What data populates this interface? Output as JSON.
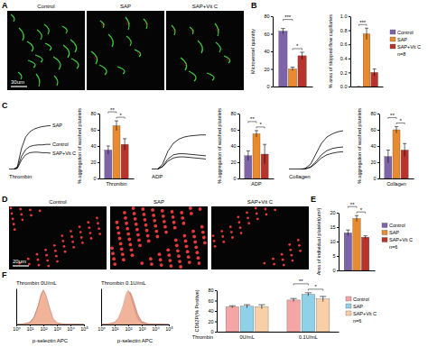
{
  "panel_letters": [
    "A",
    "B",
    "C",
    "D",
    "E",
    "F"
  ],
  "images": [
    {
      "labels": [
        "Control",
        "SAP",
        "SAP+Vit C"
      ],
      "scale_bar": "30um"
    },
    {
      "labels": [
        "Control",
        "SAP",
        "SAP+Vit C"
      ],
      "scale_bar": "20um"
    }
  ],
  "chart_data": [
    {
      "type": "bar",
      "ylabel": "Microvessel quantity",
      "categories": [
        null
      ],
      "ylim": [
        0,
        80
      ],
      "yticks": [
        0,
        20,
        40,
        60,
        80
      ],
      "series": [
        {
          "color": "#7f63a8",
          "values": [
            63
          ],
          "errors": [
            3
          ]
        },
        {
          "color": "#e98a2e",
          "values": [
            20
          ],
          "errors": [
            2
          ]
        },
        {
          "color": "#b8332c",
          "values": [
            35
          ],
          "errors": [
            4
          ]
        }
      ],
      "annotations": [
        {
          "text": "***",
          "category": 0,
          "series": [
            0,
            1
          ]
        },
        {
          "text": "*",
          "category": 0,
          "series": [
            1,
            2
          ]
        }
      ]
    },
    {
      "type": "bar",
      "ylabel": "% area of stopped-flow capillaries",
      "categories": [
        null
      ],
      "ylim": [
        0,
        1
      ],
      "yticks": [
        {
          "value": 0,
          "label": "0.0"
        },
        0.2,
        0.4,
        0.6,
        0.8,
        {
          "value": 1,
          "label": "1.0"
        }
      ],
      "series": [
        {
          "name": "Control",
          "color": "#7f63a8",
          "values": [
            0
          ],
          "errors": [
            0
          ]
        },
        {
          "name": "SAP",
          "color": "#e98a2e",
          "values": [
            0.75
          ],
          "errors": [
            0.08
          ]
        },
        {
          "name": "SAP+Vit C",
          "color": "#b8332c",
          "values": [
            0.2
          ],
          "errors": [
            0.05
          ]
        }
      ],
      "legend": "right",
      "legend_note": "n=8",
      "annotations": [
        {
          "text": "***",
          "category": 0,
          "series": [
            0,
            1
          ]
        }
      ]
    },
    {
      "type": "line",
      "xlabel": "Thrombin",
      "x": [
        0,
        1,
        2,
        3,
        4,
        5,
        6,
        7,
        8,
        9,
        10
      ],
      "xlim": [
        0,
        10
      ],
      "ylim": [
        0,
        100
      ],
      "tick_labels": false,
      "series": [
        {
          "name": "SAP",
          "color": "#000000",
          "values": [
            0,
            0,
            5,
            40,
            62,
            72,
            77,
            80,
            82,
            83,
            84
          ]
        },
        {
          "name": "Control",
          "color": "#000000",
          "values": [
            0,
            0,
            3,
            25,
            38,
            44,
            46,
            47,
            47,
            48,
            48
          ]
        },
        {
          "name": "SAP+Vit C",
          "color": "#000000",
          "values": [
            0,
            0,
            2,
            18,
            28,
            32,
            33,
            33,
            32,
            32,
            31
          ]
        }
      ]
    },
    {
      "type": "bar",
      "ylabel": "% aggregation of washed platelets",
      "categories": [
        "Thrombin"
      ],
      "ylim": [
        0,
        80
      ],
      "yticks": [
        0,
        20,
        40,
        60,
        80
      ],
      "series": [
        {
          "color": "#7f63a8",
          "values": [
            35
          ],
          "errors": [
            5
          ]
        },
        {
          "color": "#e98a2e",
          "values": [
            65
          ],
          "errors": [
            6
          ]
        },
        {
          "color": "#b8332c",
          "values": [
            42
          ],
          "errors": [
            7
          ]
        }
      ],
      "annotations": [
        {
          "text": "**",
          "category": 0,
          "series": [
            0,
            1
          ]
        },
        {
          "text": "*",
          "category": 0,
          "series": [
            1,
            2
          ]
        }
      ]
    },
    {
      "type": "line",
      "xlabel": "ADP",
      "x": [
        0,
        1,
        2,
        3,
        4,
        5,
        6,
        7,
        8,
        9,
        10
      ],
      "xlim": [
        0,
        10
      ],
      "ylim": [
        0,
        100
      ],
      "tick_labels": false,
      "series": [
        {
          "color": "#000000",
          "values": [
            0,
            0,
            10,
            35,
            50,
            58,
            62,
            64,
            65,
            66,
            66
          ]
        },
        {
          "color": "#000000",
          "values": [
            0,
            0,
            6,
            20,
            28,
            30,
            30,
            29,
            28,
            27,
            26
          ]
        },
        {
          "color": "#000000",
          "values": [
            0,
            0,
            5,
            16,
            22,
            24,
            24,
            23,
            22,
            21,
            20
          ]
        }
      ]
    },
    {
      "type": "bar",
      "ylabel": "% aggregation of washed platelets",
      "categories": [
        "ADP"
      ],
      "ylim": [
        0,
        80
      ],
      "yticks": [
        0,
        20,
        40,
        60,
        80
      ],
      "series": [
        {
          "color": "#7f63a8",
          "values": [
            28
          ],
          "errors": [
            6
          ]
        },
        {
          "color": "#e98a2e",
          "values": [
            55
          ],
          "errors": [
            4
          ]
        },
        {
          "color": "#b8332c",
          "values": [
            30
          ],
          "errors": [
            12
          ]
        }
      ],
      "annotations": [
        {
          "text": "**",
          "category": 0,
          "series": [
            0,
            1
          ]
        },
        {
          "text": "*",
          "category": 0,
          "series": [
            1,
            2
          ]
        }
      ]
    },
    {
      "type": "line",
      "xlabel": "Collagen",
      "x": [
        0,
        1,
        2,
        3,
        4,
        5,
        6,
        7,
        8,
        9,
        10
      ],
      "xlim": [
        0,
        10
      ],
      "ylim": [
        0,
        100
      ],
      "tick_labels": false,
      "series": [
        {
          "color": "#000000",
          "values": [
            0,
            0,
            0,
            2,
            10,
            30,
            50,
            62,
            68,
            72,
            74
          ]
        },
        {
          "color": "#000000",
          "values": [
            0,
            0,
            0,
            1,
            5,
            15,
            28,
            36,
            40,
            42,
            43
          ]
        },
        {
          "color": "#000000",
          "values": [
            0,
            0,
            0,
            1,
            4,
            12,
            22,
            28,
            31,
            33,
            34
          ]
        }
      ]
    },
    {
      "type": "bar",
      "ylabel": "% aggregation of washed platelets",
      "categories": [
        "Collagen"
      ],
      "ylim": [
        0,
        80
      ],
      "yticks": [
        0,
        20,
        40,
        60,
        80
      ],
      "series": [
        {
          "color": "#7f63a8",
          "values": [
            27
          ],
          "errors": [
            8
          ]
        },
        {
          "color": "#e98a2e",
          "values": [
            60
          ],
          "errors": [
            4
          ]
        },
        {
          "color": "#b8332c",
          "values": [
            35
          ],
          "errors": [
            8
          ]
        }
      ],
      "annotations": [
        {
          "text": "**",
          "category": 0,
          "series": [
            0,
            1
          ]
        },
        {
          "text": "*",
          "category": 0,
          "series": [
            1,
            2
          ]
        }
      ]
    },
    {
      "type": "bar",
      "ylabel": "Area of individual platelet(um²)",
      "categories": [
        null
      ],
      "ylim": [
        0,
        20
      ],
      "yticks": [
        0,
        5,
        10,
        15,
        20
      ],
      "series": [
        {
          "name": "Control",
          "color": "#7f63a8",
          "values": [
            13
          ],
          "errors": [
            1
          ]
        },
        {
          "name": "SAP",
          "color": "#e98a2e",
          "values": [
            18
          ],
          "errors": [
            1
          ]
        },
        {
          "name": "SAP+Vit C",
          "color": "#b8332c",
          "values": [
            11.5
          ],
          "errors": [
            0.5
          ]
        }
      ],
      "legend": "right",
      "legend_note": "n=6",
      "annotations": [
        {
          "text": "**",
          "category": 0,
          "series": [
            0,
            1
          ]
        },
        {
          "text": "*",
          "category": 0,
          "series": [
            1,
            2
          ]
        }
      ]
    },
    {
      "type": "area",
      "title": "Thrombin 0U/mL",
      "xlabel": "p-selectin APC",
      "log": "x",
      "x": [
        1,
        3,
        10,
        20,
        40,
        70,
        100,
        150,
        250,
        500,
        1000,
        3000,
        100000
      ],
      "xlim": [
        1,
        100000
      ],
      "xticks": [
        {
          "value": 1,
          "label": "10⁰"
        },
        {
          "value": 10,
          "label": "10¹"
        },
        {
          "value": 100,
          "label": "10²"
        },
        {
          "value": 1000,
          "label": "10³"
        },
        {
          "value": 10000,
          "label": "10⁴"
        },
        {
          "value": 100000,
          "label": "10⁵"
        }
      ],
      "ylim": [
        0,
        100
      ],
      "tick_labels": "x",
      "series": [
        {
          "color": "#e8806e",
          "values": [
            0,
            1,
            6,
            20,
            50,
            85,
            95,
            80,
            50,
            15,
            4,
            1,
            0
          ]
        },
        {
          "color": "#f3b99e",
          "values": [
            0,
            1,
            5,
            18,
            48,
            82,
            96,
            84,
            55,
            18,
            5,
            1,
            0
          ]
        }
      ]
    },
    {
      "type": "area",
      "title": "Thrombin 0.1U/mL",
      "xlabel": "p-selectin APC",
      "log": "x",
      "x": [
        1,
        3,
        10,
        20,
        40,
        70,
        100,
        150,
        250,
        500,
        1000,
        3000,
        100000
      ],
      "xlim": [
        1,
        100000
      ],
      "xticks": [
        {
          "value": 1,
          "label": "10⁰"
        },
        {
          "value": 10,
          "label": "10¹"
        },
        {
          "value": 100,
          "label": "10²"
        },
        {
          "value": 1000,
          "label": "10³"
        },
        {
          "value": 10000,
          "label": "10⁴"
        },
        {
          "value": 100000,
          "label": "10⁵"
        }
      ],
      "ylim": [
        0,
        100
      ],
      "tick_labels": "x",
      "series": [
        {
          "color": "#e8806e",
          "values": [
            0,
            1,
            5,
            16,
            40,
            72,
            90,
            88,
            65,
            28,
            8,
            2,
            0
          ]
        },
        {
          "color": "#f3b99e",
          "values": [
            0,
            1,
            6,
            20,
            50,
            85,
            95,
            80,
            50,
            15,
            4,
            1,
            0
          ]
        }
      ]
    },
    {
      "type": "bar",
      "ylabel": "CD62P(% Positive)",
      "xlabel": "Thrombin",
      "categories": [
        "0U/mL",
        "0.1U/mL"
      ],
      "ylim": [
        0,
        80
      ],
      "yticks": [
        0,
        20,
        40,
        60,
        80
      ],
      "series": [
        {
          "name": "Control",
          "color": "#f4a6a6",
          "values": [
            48,
            61
          ],
          "errors": [
            2,
            3
          ]
        },
        {
          "name": "SAP",
          "color": "#8ed1e8",
          "values": [
            49,
            72
          ],
          "errors": [
            3,
            3
          ]
        },
        {
          "name": "SAP+Vit C",
          "color": "#f9cfa8",
          "values": [
            48,
            63
          ],
          "errors": [
            4,
            5
          ]
        }
      ],
      "legend": "right",
      "legend_note": "n=6",
      "annotations": [
        {
          "text": "**",
          "category": 1,
          "series": [
            0,
            1
          ]
        },
        {
          "text": "*",
          "category": 1,
          "series": [
            1,
            2
          ]
        }
      ]
    }
  ]
}
